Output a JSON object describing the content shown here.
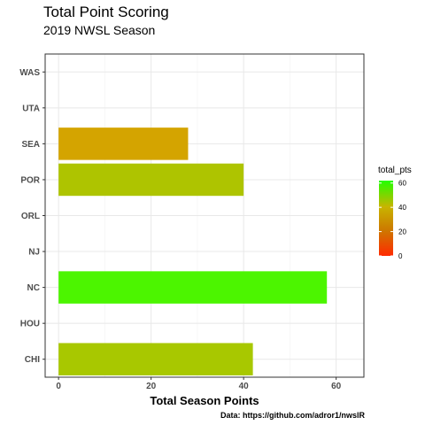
{
  "chart_data": {
    "type": "bar",
    "orientation": "horizontal",
    "title": "Total Point Scoring",
    "subtitle": "2019 NWSL Season",
    "xlabel": "Total Season Points",
    "ylabel": "",
    "caption": "Data: https://github.com/adror1/nwslR",
    "categories": [
      "CHI",
      "HOU",
      "NC",
      "NJ",
      "ORL",
      "POR",
      "SEA",
      "UTA",
      "WAS"
    ],
    "values": [
      42,
      null,
      58,
      null,
      null,
      40,
      28,
      null,
      null
    ],
    "xlim": [
      -2.9,
      66
    ],
    "xticks": [
      0,
      20,
      40,
      60
    ],
    "grid": true,
    "legend": {
      "title": "total_pts",
      "position": "right",
      "ticks": [
        0,
        20,
        40,
        60
      ],
      "range": [
        0,
        62
      ],
      "colors": {
        "low": "#ff2a00",
        "mid": "#d4a000",
        "high": "#22ff00"
      }
    },
    "bar_colors": {
      "CHI": "#a8c800",
      "NC": "#4cf500",
      "POR": "#aec400",
      "SEA": "#d4a400"
    }
  }
}
